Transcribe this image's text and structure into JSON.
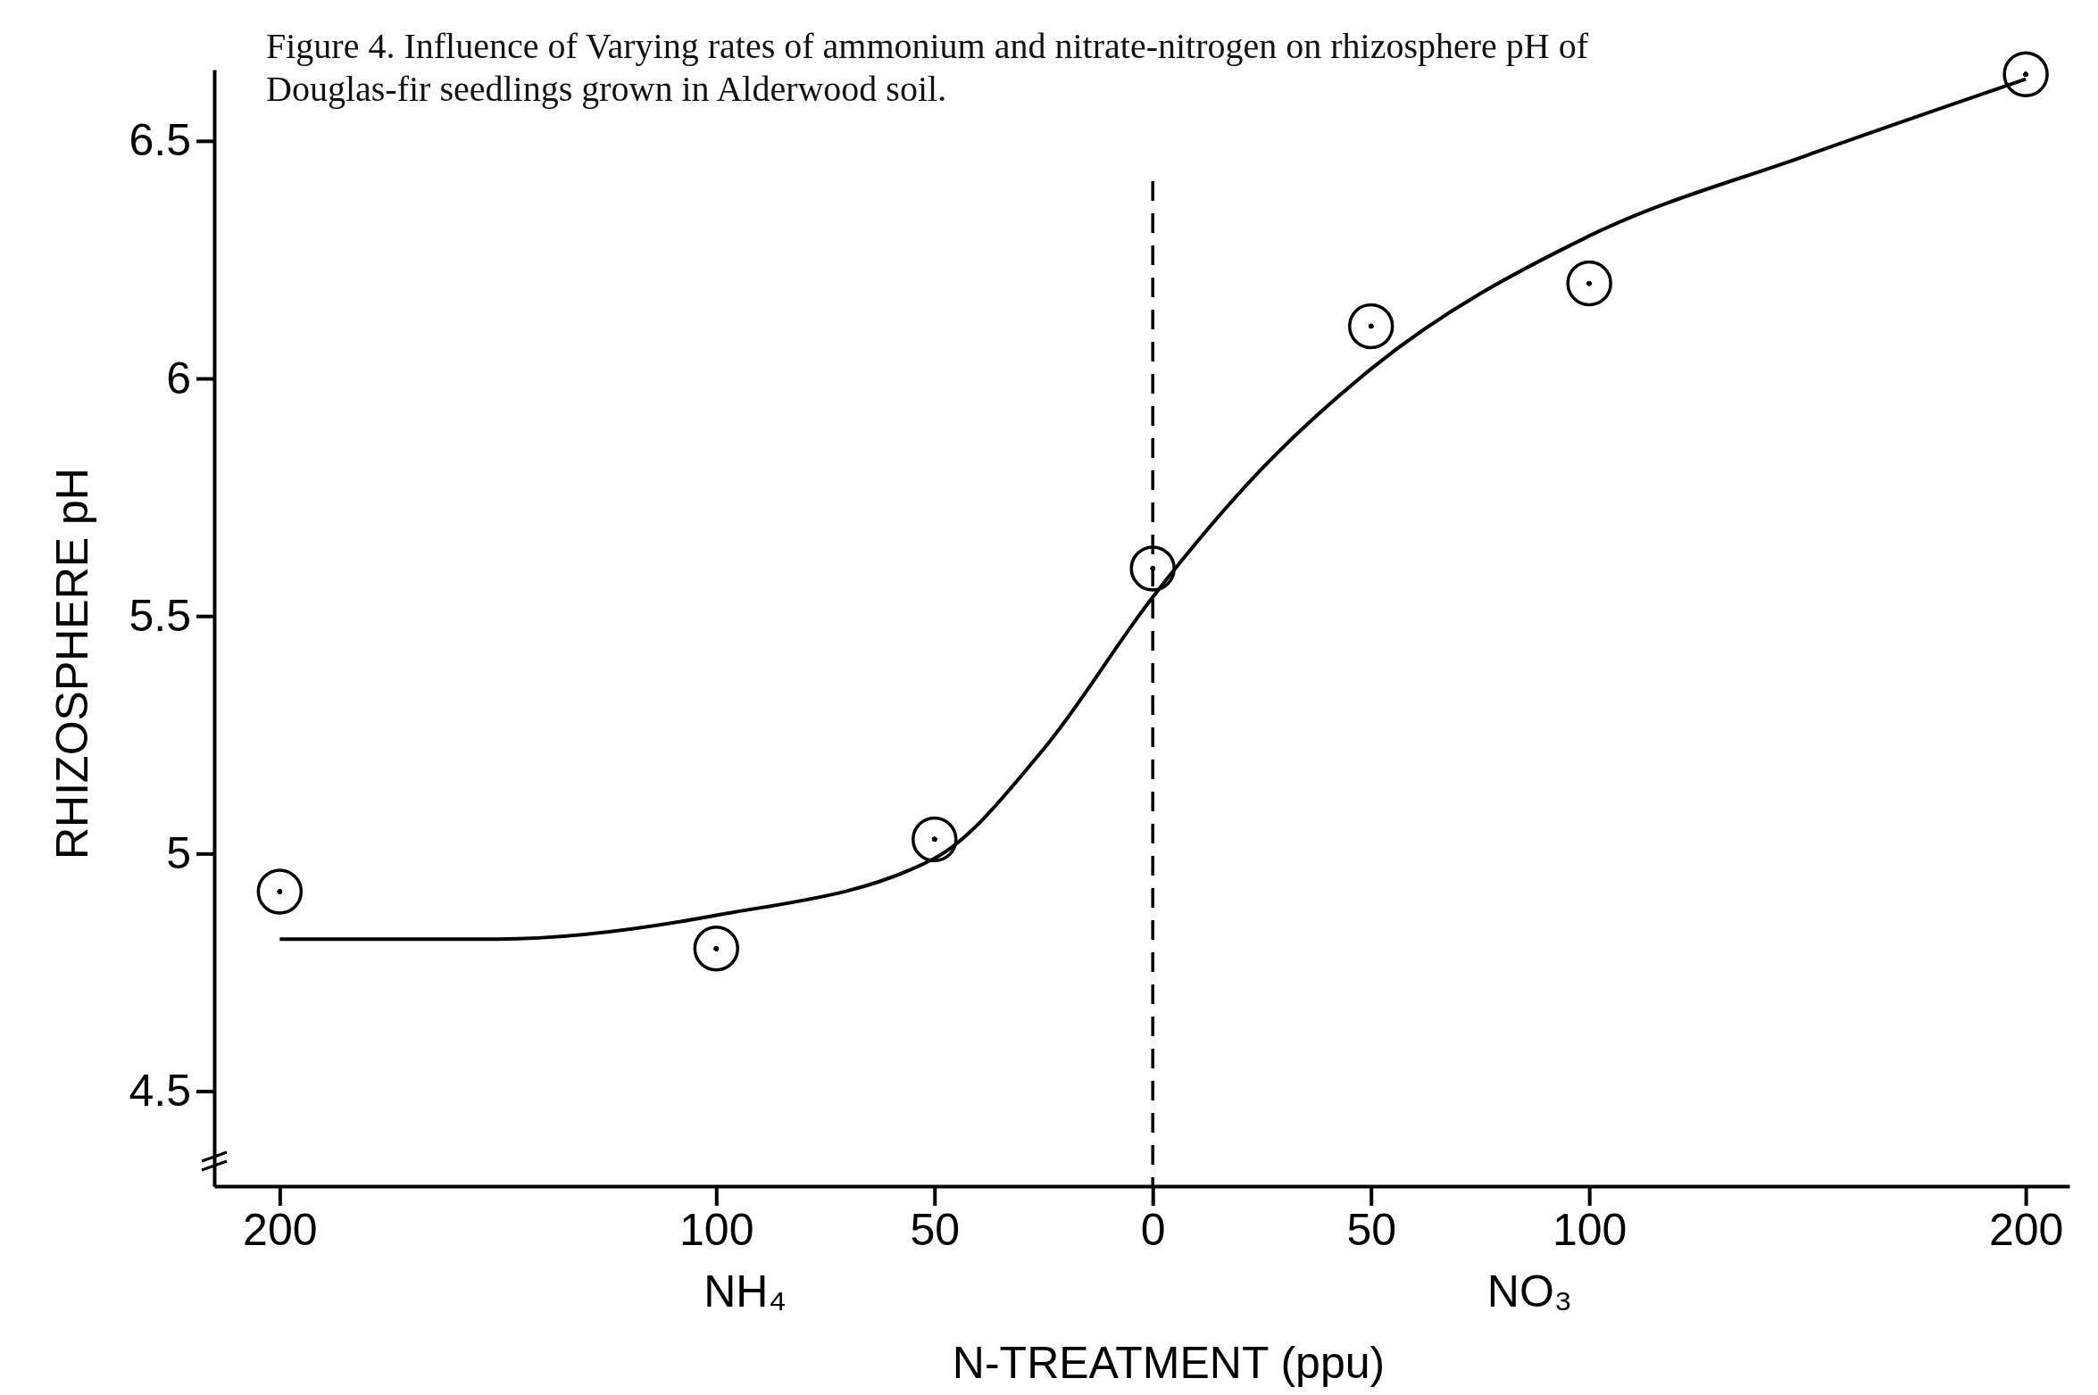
{
  "chart_data": {
    "type": "scatter",
    "title": "Figure 4.  Influence of Varying rates of ammonium and nitrate-nitrogen on rhizosphere pH of Douglas-fir seedlings grown in Alderwood soil.",
    "xlabel": "N-TREATMENT (ppu)",
    "ylabel": "RHIZOSPHERE  pH",
    "annotations": [
      "NH₄",
      "NO₃"
    ],
    "xlim": [
      -215,
      210
    ],
    "xticks": [
      {
        "value": -200,
        "label": "200"
      },
      {
        "value": -100,
        "label": "100"
      },
      {
        "value": -50,
        "label": "50"
      },
      0,
      50,
      100,
      200
    ],
    "ylim": [
      4.3,
      6.65
    ],
    "yticks": [
      4.5,
      5.0,
      5.5,
      6.0,
      6.5
    ],
    "grid": false,
    "marker": "circle",
    "ref_lines": [
      {
        "axis": "x",
        "value": 0,
        "line_style": "dashed",
        "color": "#000000"
      }
    ],
    "series": [
      {
        "color": "#000000",
        "x": [
          -200,
          -100,
          -50,
          0,
          50,
          100,
          200
        ],
        "values": [
          4.92,
          4.8,
          5.03,
          5.6,
          6.11,
          6.2,
          6.64
        ]
      },
      {
        "type": "line",
        "color": "#000000",
        "line_style": "solid",
        "marker": "none",
        "x": [
          -200,
          -150,
          -100,
          -50,
          -25,
          0,
          25,
          50,
          100,
          150,
          200
        ],
        "values": [
          4.82,
          4.82,
          4.87,
          4.99,
          5.22,
          5.54,
          5.81,
          6.02,
          6.3,
          6.47,
          6.63
        ]
      }
    ]
  }
}
